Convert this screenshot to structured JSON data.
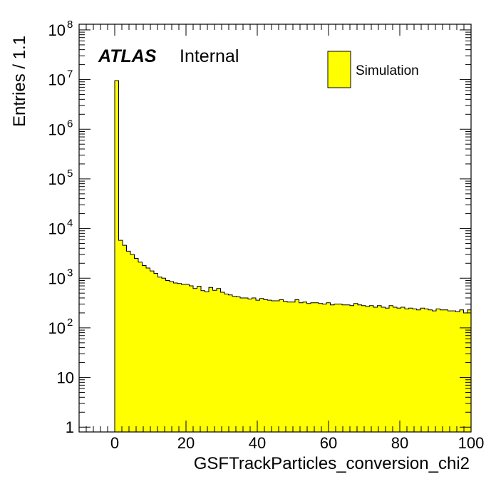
{
  "chart_data": {
    "type": "bar",
    "histogram": true,
    "label": {
      "atlas": "ATLAS",
      "status": "Internal"
    },
    "xlabel": "GSFTrackParticles_conversion_chi2",
    "ylabel": "Entries / 1.1",
    "xlim": [
      -10,
      100
    ],
    "ylim": [
      0.8,
      130000000
    ],
    "ylog": true,
    "bin_width": 1.1,
    "x_ticks": [
      {
        "value": 0,
        "label": "0"
      },
      {
        "value": 20,
        "label": "20"
      },
      {
        "value": 40,
        "label": "40"
      },
      {
        "value": 60,
        "label": "60"
      },
      {
        "value": 80,
        "label": "80"
      },
      {
        "value": 100,
        "label": "100"
      }
    ],
    "y_ticks": [
      {
        "value": 1,
        "label": "1",
        "base": "",
        "exp": ""
      },
      {
        "value": 10,
        "label": "10",
        "base": "",
        "exp": ""
      },
      {
        "value": 100,
        "label": "",
        "base": "10",
        "exp": "2"
      },
      {
        "value": 1000,
        "label": "",
        "base": "10",
        "exp": "3"
      },
      {
        "value": 10000,
        "label": "",
        "base": "10",
        "exp": "4"
      },
      {
        "value": 100000,
        "label": "",
        "base": "10",
        "exp": "5"
      },
      {
        "value": 1000000,
        "label": "",
        "base": "10",
        "exp": "6"
      },
      {
        "value": 10000000,
        "label": "",
        "base": "10",
        "exp": "7"
      },
      {
        "value": 100000000,
        "label": "",
        "base": "10",
        "exp": "8"
      }
    ],
    "legend": {
      "position": "top-right",
      "entries": [
        {
          "name": "Simulation",
          "color": "#ffff00"
        }
      ]
    },
    "series": [
      {
        "name": "Simulation",
        "color": "#ffff00",
        "edge_color": "#000000",
        "x_start": 0,
        "values": [
          9500000,
          5800,
          4600,
          3500,
          3000,
          2500,
          2100,
          1800,
          1600,
          1400,
          1250,
          1050,
          1000,
          900,
          850,
          800,
          780,
          750,
          750,
          700,
          620,
          690,
          560,
          530,
          650,
          570,
          620,
          520,
          480,
          460,
          430,
          420,
          400,
          400,
          380,
          400,
          360,
          390,
          370,
          360,
          350,
          350,
          370,
          340,
          330,
          330,
          370,
          320,
          330,
          310,
          320,
          320,
          310,
          300,
          320,
          290,
          300,
          300,
          290,
          290,
          280,
          310,
          290,
          280,
          270,
          280,
          260,
          280,
          260,
          250,
          280,
          260,
          250,
          260,
          240,
          250,
          240,
          230,
          250,
          240,
          230,
          220,
          240,
          230,
          230,
          220,
          220,
          210,
          230,
          200,
          230,
          220,
          210,
          210
        ]
      }
    ]
  }
}
